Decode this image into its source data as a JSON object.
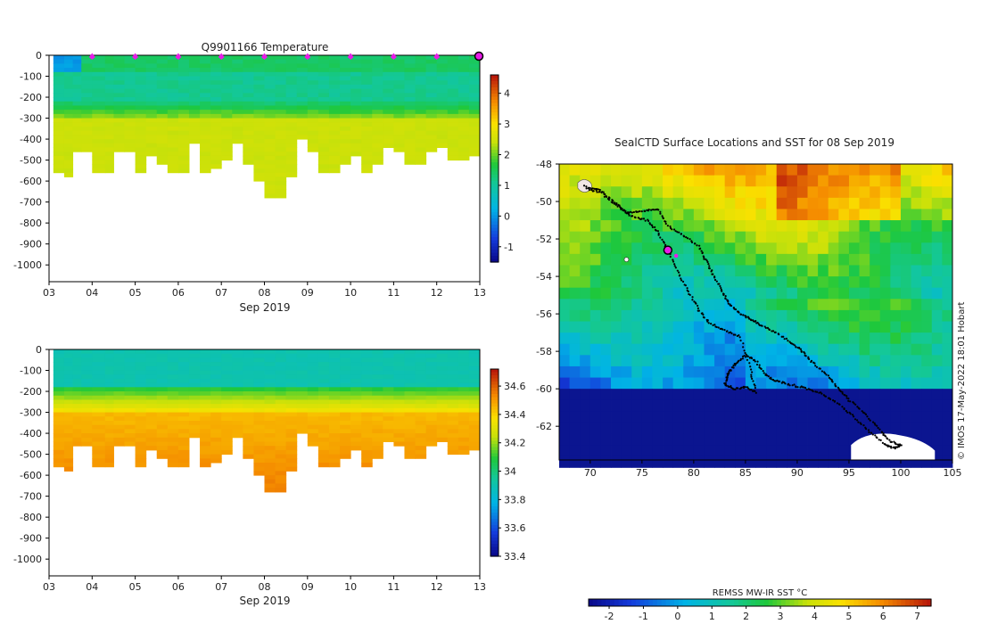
{
  "chart_data": [
    {
      "type": "heatmap",
      "name": "temperature-profile",
      "title": "Q9901166  Temperature",
      "xlabel": "Sep 2019",
      "x_ticks": [
        "03",
        "04",
        "05",
        "06",
        "07",
        "08",
        "09",
        "10",
        "11",
        "12",
        "13"
      ],
      "x_range": [
        3,
        13
      ],
      "ylim": [
        -1080,
        0
      ],
      "y_ticks": [
        0,
        -100,
        -200,
        -300,
        -400,
        -500,
        -600,
        -700,
        -800,
        -900,
        -1000
      ],
      "colorbar": {
        "range": [
          -1.5,
          4.6
        ],
        "ticks": [
          4,
          3,
          2,
          1,
          0,
          -1
        ]
      },
      "profiles": {
        "day": [
          3.1,
          3.35,
          3.55,
          3.75,
          4.0,
          4.3,
          4.5,
          4.75,
          5.0,
          5.25,
          5.5,
          5.75,
          6.0,
          6.25,
          6.5,
          6.75,
          7.0,
          7.25,
          7.5,
          7.75,
          8.0,
          8.25,
          8.5,
          8.75,
          9.0,
          9.25,
          9.5,
          9.75,
          10.0,
          10.25,
          10.5,
          10.75,
          11.0,
          11.25,
          11.5,
          11.75,
          12.0,
          12.25,
          12.5,
          12.75,
          13.0
        ],
        "bottom_depth": [
          -560,
          -565,
          -460,
          -455,
          -560,
          -545,
          -450,
          -445,
          -550,
          -475,
          -510,
          -550,
          -550,
          -410,
          -550,
          -530,
          -490,
          -410,
          -510,
          -600,
          -670,
          -675,
          -575,
          -400,
          -450,
          -560,
          -560,
          -510,
          -470,
          -550,
          -505,
          -430,
          -455,
          -515,
          -510,
          -450,
          -425,
          -500,
          -495,
          -480,
          -500
        ],
        "surface_value": 1.4,
        "mixed_layer_value": 1.1,
        "deep_value": 2.3,
        "thermocline_depth": -200
      },
      "surface_markers": [
        4,
        5,
        6,
        7,
        8,
        9,
        10,
        11,
        12
      ],
      "selected_marker": 13
    },
    {
      "type": "heatmap",
      "name": "salinity-profile",
      "title": "",
      "xlabel": "Sep 2019",
      "x_ticks": [
        "03",
        "04",
        "05",
        "06",
        "07",
        "08",
        "09",
        "10",
        "11",
        "12",
        "13"
      ],
      "x_range": [
        3,
        13
      ],
      "ylim": [
        -1080,
        0
      ],
      "y_ticks": [
        0,
        -100,
        -200,
        -300,
        -400,
        -500,
        -600,
        -700,
        -800,
        -900,
        -1000
      ],
      "colorbar": {
        "range": [
          33.4,
          34.72
        ],
        "ticks": [
          34.6,
          34.4,
          34.2,
          34,
          33.8,
          33.6,
          33.4
        ]
      },
      "profiles": {
        "surface_value": 33.9,
        "thermocline_value": 34.1,
        "deep_value": 34.55,
        "thermocline_depth": -200
      }
    },
    {
      "type": "heatmap",
      "name": "sst-map",
      "title": "SealCTD Surface Locations and SST for 08 Sep 2019",
      "x_ticks": [
        70,
        75,
        80,
        85,
        90,
        95,
        100,
        105
      ],
      "xlim": [
        67,
        105
      ],
      "y_ticks": [
        -48,
        -50,
        -52,
        -54,
        -56,
        -58,
        -60,
        -62
      ],
      "ylim": [
        -63.8,
        -48
      ],
      "colorbar": {
        "label": "REMSS MW-IR SST °C",
        "range": [
          -2.6,
          7.4
        ],
        "ticks": [
          -2,
          -1,
          0,
          1,
          2,
          3,
          4,
          5,
          6,
          7
        ]
      },
      "current_location": {
        "lon": 77.5,
        "lat": -52.6
      },
      "credit": "© IMOS 17-May-2022 18:01 Hobart",
      "track": [
        [
          69.5,
          -49.2
        ],
        [
          71,
          -49.4
        ],
        [
          72.5,
          -50.1
        ],
        [
          73.5,
          -50.6
        ],
        [
          75,
          -50.5
        ],
        [
          76.5,
          -50.4
        ],
        [
          77.5,
          -51.3
        ],
        [
          79,
          -51.8
        ],
        [
          80.5,
          -52.4
        ],
        [
          81.2,
          -53.2
        ],
        [
          82,
          -54.0
        ],
        [
          82.8,
          -54.9
        ],
        [
          83.5,
          -55.5
        ],
        [
          84.5,
          -56.0
        ],
        [
          85.5,
          -56.3
        ],
        [
          86.5,
          -56.6
        ],
        [
          88,
          -57.0
        ],
        [
          89.5,
          -57.6
        ],
        [
          90.5,
          -58.0
        ],
        [
          91.5,
          -58.6
        ],
        [
          93,
          -59.3
        ],
        [
          94,
          -60.0
        ],
        [
          95,
          -60.6
        ],
        [
          96.5,
          -61.3
        ],
        [
          98,
          -62.2
        ],
        [
          99,
          -62.8
        ],
        [
          100,
          -63.0
        ],
        [
          99.5,
          -63.2
        ],
        [
          98.5,
          -63.0
        ],
        [
          97,
          -62.3
        ],
        [
          95.5,
          -61.5
        ],
        [
          94,
          -60.8
        ],
        [
          92.5,
          -60.3
        ],
        [
          91,
          -60.0
        ],
        [
          89.5,
          -59.8
        ],
        [
          88,
          -59.6
        ],
        [
          87,
          -59.3
        ],
        [
          86,
          -58.5
        ],
        [
          85,
          -58.2
        ],
        [
          84,
          -58.7
        ],
        [
          83.3,
          -59.2
        ],
        [
          83,
          -59.8
        ],
        [
          84,
          -60.0
        ],
        [
          85,
          -59.9
        ],
        [
          86,
          -60.2
        ],
        [
          85.5,
          -59.0
        ],
        [
          84.5,
          -57.2
        ],
        [
          83,
          -56.9
        ],
        [
          81.5,
          -56.5
        ],
        [
          80.5,
          -55.8
        ],
        [
          79.5,
          -54.8
        ],
        [
          78.5,
          -53.8
        ],
        [
          77.5,
          -52.6
        ],
        [
          76.5,
          -51.6
        ],
        [
          75.5,
          -51.0
        ],
        [
          74,
          -50.8
        ],
        [
          72.5,
          -50.2
        ],
        [
          71,
          -49.5
        ],
        [
          69.5,
          -49.3
        ]
      ]
    }
  ]
}
